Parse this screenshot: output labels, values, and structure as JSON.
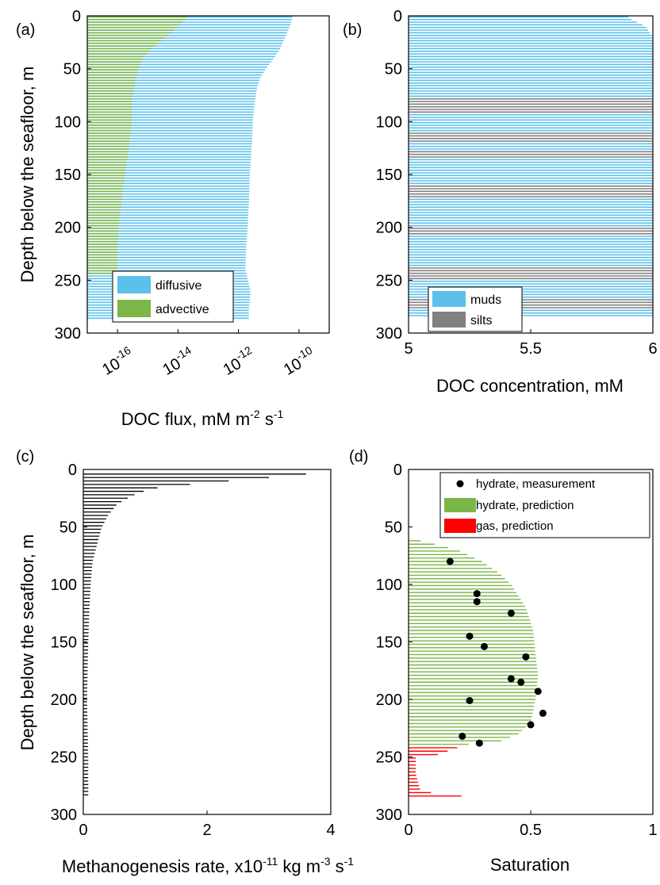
{
  "chart_data": [
    {
      "id": "a",
      "panel_label": "(a)",
      "type": "bar",
      "orientation": "horizontal",
      "xlabel": "DOC flux, mM m^-2 s^-1",
      "ylabel": "Depth below the seafloor, m",
      "x_scale": "log",
      "xlim": [
        1e-17,
        1e-09
      ],
      "ylim": [
        0,
        300
      ],
      "y_reversed": true,
      "x_ticks": [
        1e-16,
        1e-14,
        1e-12,
        1e-10
      ],
      "x_tick_labels": [
        {
          "base": "10",
          "exp": "-16"
        },
        {
          "base": "10",
          "exp": "-14"
        },
        {
          "base": "10",
          "exp": "-12"
        },
        {
          "base": "10",
          "exp": "-10"
        }
      ],
      "y_ticks": [
        0,
        50,
        100,
        150,
        200,
        250,
        300
      ],
      "y_tick_labels": [
        "0",
        "50",
        "100",
        "150",
        "200",
        "250",
        "300"
      ],
      "legend": {
        "position": "bottom-left",
        "entries": [
          "diffusive",
          "advective"
        ]
      },
      "series": [
        {
          "name": "diffusive",
          "color": "#5bc0eb",
          "depth": [
            2,
            10,
            20,
            30,
            40,
            50,
            60,
            70,
            80,
            100,
            120,
            140,
            160,
            180,
            200,
            220,
            240,
            260,
            280,
            287
          ],
          "values": [
            6e-11,
            5e-11,
            3.5e-11,
            2.5e-11,
            1.5e-11,
            8e-12,
            5e-12,
            4e-12,
            3.5e-12,
            3e-12,
            2.8e-12,
            2.5e-12,
            2.3e-12,
            2.2e-12,
            2e-12,
            1.8e-12,
            1.7e-12,
            2.5e-12,
            2.2e-12,
            2.2e-12
          ]
        },
        {
          "name": "advective",
          "color": "#7ab648",
          "depth": [
            2,
            10,
            20,
            30,
            40,
            50,
            60,
            70,
            80,
            100,
            120,
            140,
            160,
            180,
            200,
            220,
            240,
            245
          ],
          "values": [
            2e-14,
            1e-14,
            4e-15,
            1.5e-15,
            7e-16,
            5e-16,
            4e-16,
            3.5e-16,
            3e-16,
            3e-16,
            2.5e-16,
            2e-16,
            1.6e-16,
            1.3e-16,
            1.1e-16,
            1e-16,
            1e-16,
            1e-16
          ]
        }
      ]
    },
    {
      "id": "b",
      "panel_label": "(b)",
      "type": "bar",
      "orientation": "horizontal",
      "xlabel": "DOC concentration, mM",
      "ylabel": "",
      "xlim": [
        5,
        6
      ],
      "ylim": [
        0,
        300
      ],
      "y_reversed": true,
      "x_ticks": [
        5,
        5.5,
        6
      ],
      "x_tick_labels": [
        "5",
        "5.5",
        "6"
      ],
      "y_ticks": [
        0,
        50,
        100,
        150,
        200,
        250,
        300
      ],
      "y_tick_labels": [
        "0",
        "50",
        "100",
        "150",
        "200",
        "250",
        "300"
      ],
      "legend": {
        "position": "bottom-left",
        "entries": [
          "muds",
          "silts"
        ]
      },
      "series": [
        {
          "name": "muds",
          "color": "#5bc0eb"
        },
        {
          "name": "silts",
          "color": "#808080"
        }
      ],
      "depth": [
        2,
        10,
        20,
        285
      ],
      "values": [
        5.9,
        5.97,
        6.0,
        6.0
      ],
      "silt_intervals": [
        [
          78,
          92
        ],
        [
          110,
          120
        ],
        [
          128,
          134
        ],
        [
          160,
          172
        ],
        [
          200,
          206
        ],
        [
          238,
          250
        ],
        [
          268,
          276
        ]
      ]
    },
    {
      "id": "c",
      "panel_label": "(c)",
      "type": "bar",
      "orientation": "horizontal",
      "xlabel": "Methanogenesis rate, x10^-11 kg m^-3 s^-1",
      "ylabel": "Depth below the seafloor, m",
      "xlim": [
        0,
        4
      ],
      "ylim": [
        0,
        300
      ],
      "y_reversed": true,
      "x_ticks": [
        0,
        2,
        4
      ],
      "x_tick_labels": [
        "0",
        "2",
        "4"
      ],
      "y_ticks": [
        0,
        50,
        100,
        150,
        200,
        250,
        300
      ],
      "y_tick_labels": [
        "0",
        "50",
        "100",
        "150",
        "200",
        "250",
        "300"
      ],
      "series": [
        {
          "name": "",
          "color": "#000000",
          "depth": [
            4,
            8,
            12,
            16,
            20,
            25,
            30,
            40,
            50,
            60,
            70,
            80,
            100,
            120,
            150,
            200,
            250,
            285
          ],
          "values": [
            3.6,
            2.8,
            1.9,
            1.2,
            0.9,
            0.72,
            0.55,
            0.4,
            0.3,
            0.25,
            0.2,
            0.15,
            0.12,
            0.1,
            0.08,
            0.06,
            0.08,
            0.08
          ]
        }
      ]
    },
    {
      "id": "d",
      "panel_label": "(d)",
      "type": "bar",
      "orientation": "horizontal",
      "xlabel": "Saturation",
      "ylabel": "",
      "xlim": [
        0,
        1
      ],
      "ylim": [
        0,
        300
      ],
      "y_reversed": true,
      "x_ticks": [
        0,
        0.5,
        1
      ],
      "x_tick_labels": [
        "0",
        "0.5",
        "1"
      ],
      "y_ticks": [
        0,
        50,
        100,
        150,
        200,
        250,
        300
      ],
      "y_tick_labels": [
        "0",
        "50",
        "100",
        "150",
        "200",
        "250",
        "300"
      ],
      "legend": {
        "position": "top-right",
        "entries": [
          "hydrate, measurement",
          "hydrate, prediction",
          "gas, prediction"
        ]
      },
      "series": [
        {
          "name": "hydrate, prediction",
          "color": "#7ab648",
          "depth": [
            62,
            70,
            80,
            90,
            100,
            120,
            140,
            160,
            180,
            200,
            220,
            230,
            236,
            240
          ],
          "values": [
            0.05,
            0.2,
            0.3,
            0.37,
            0.42,
            0.48,
            0.51,
            0.52,
            0.53,
            0.52,
            0.5,
            0.45,
            0.38,
            0.2
          ]
        },
        {
          "name": "gas, prediction",
          "color": "#ff0000",
          "depth": [
            242,
            248,
            250,
            265,
            280,
            286
          ],
          "values": [
            0.2,
            0.12,
            0.03,
            0.03,
            0.05,
            0.3
          ]
        },
        {
          "name": "hydrate, measurement",
          "type": "scatter",
          "color": "#000000",
          "points": [
            [
              0.17,
              80
            ],
            [
              0.28,
              108
            ],
            [
              0.28,
              115
            ],
            [
              0.42,
              125
            ],
            [
              0.25,
              145
            ],
            [
              0.31,
              154
            ],
            [
              0.48,
              163
            ],
            [
              0.42,
              182
            ],
            [
              0.46,
              185
            ],
            [
              0.53,
              193
            ],
            [
              0.25,
              201
            ],
            [
              0.55,
              212
            ],
            [
              0.5,
              222
            ],
            [
              0.22,
              232
            ],
            [
              0.29,
              238
            ]
          ]
        }
      ]
    }
  ]
}
